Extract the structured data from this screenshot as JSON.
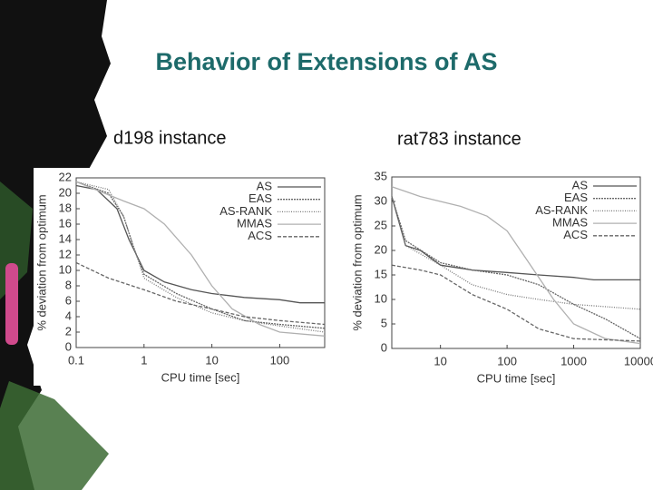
{
  "slide": {
    "title": "Behavior of Extensions of AS"
  },
  "chart_data": [
    {
      "type": "line",
      "title": "d198 instance",
      "x_label": "CPU time [sec]",
      "y_label": "% deviation from optimum",
      "xscale": "log",
      "xlim": [
        0.1,
        460
      ],
      "xticks": [
        0.1,
        1,
        10,
        100
      ],
      "ylim": [
        0,
        22
      ],
      "yticks": [
        0,
        2,
        4,
        6,
        8,
        10,
        12,
        14,
        16,
        18,
        20,
        22
      ],
      "legend": "upper right",
      "series": [
        {
          "name": "AS",
          "color": "#555555",
          "dash": "none",
          "x": [
            0.1,
            0.2,
            0.4,
            0.6,
            1,
            2,
            5,
            10,
            30,
            100,
            200,
            460
          ],
          "values": [
            21,
            20.5,
            18,
            14,
            10,
            8.5,
            7.5,
            7,
            6.5,
            6.2,
            5.8,
            5.8
          ]
        },
        {
          "name": "EAS",
          "color": "#666666",
          "dash": "2,1",
          "x": [
            0.1,
            0.3,
            0.5,
            0.7,
            1,
            3,
            10,
            30,
            100,
            460
          ],
          "values": [
            21.5,
            20,
            17,
            13,
            9.5,
            7,
            5,
            3.5,
            3,
            2.5
          ]
        },
        {
          "name": "AS-RANK",
          "color": "#777777",
          "dash": "1,1.5",
          "x": [
            0.1,
            0.3,
            0.5,
            1,
            3,
            10,
            30,
            100,
            460
          ],
          "values": [
            21.5,
            20.5,
            17,
            9,
            6.5,
            4.5,
            3.5,
            2.8,
            2
          ]
        },
        {
          "name": "MMAS",
          "color": "#b0b0b0",
          "dash": "none",
          "x": [
            0.1,
            0.5,
            1,
            2,
            5,
            10,
            20,
            50,
            100,
            460
          ],
          "values": [
            21.5,
            19,
            18,
            16,
            12,
            8,
            5,
            3,
            2,
            1.5
          ]
        },
        {
          "name": "ACS",
          "color": "#666666",
          "dash": "4,2",
          "x": [
            0.1,
            0.3,
            1,
            3,
            10,
            30,
            100,
            460
          ],
          "values": [
            11,
            9,
            7.5,
            6,
            5,
            4,
            3.5,
            3
          ]
        }
      ]
    },
    {
      "type": "line",
      "title": "rat783 instance",
      "x_label": "CPU time [sec]",
      "y_label": "% deviation from optimum",
      "xscale": "log",
      "xlim": [
        1.86,
        10000
      ],
      "xticks": [
        10,
        100,
        1000,
        10000
      ],
      "ylim": [
        0,
        35
      ],
      "yticks": [
        0,
        5,
        10,
        15,
        20,
        25,
        30,
        35
      ],
      "legend": "upper right",
      "series": [
        {
          "name": "AS",
          "color": "#555555",
          "dash": "none",
          "x": [
            1.86,
            3,
            5,
            10,
            30,
            100,
            300,
            1000,
            2000,
            10000
          ],
          "values": [
            31,
            21,
            20,
            17,
            16,
            15.5,
            15,
            14.5,
            14,
            14
          ]
        },
        {
          "name": "EAS",
          "color": "#666666",
          "dash": "2,1",
          "x": [
            1.86,
            3,
            10,
            30,
            100,
            300,
            1000,
            3000,
            10000
          ],
          "values": [
            31,
            22,
            17.5,
            16,
            15,
            13,
            9,
            6,
            2
          ]
        },
        {
          "name": "AS-RANK",
          "color": "#777777",
          "dash": "1,1.5",
          "x": [
            1.86,
            3,
            10,
            30,
            100,
            300,
            1000,
            10000
          ],
          "values": [
            31,
            21,
            17,
            13,
            11,
            10,
            9,
            8
          ]
        },
        {
          "name": "MMAS",
          "color": "#b0b0b0",
          "dash": "none",
          "x": [
            1.86,
            5,
            20,
            50,
            100,
            200,
            500,
            1000,
            3000,
            10000
          ],
          "values": [
            33,
            31,
            29,
            27,
            24,
            18,
            10,
            5,
            2,
            1
          ]
        },
        {
          "name": "ACS",
          "color": "#666666",
          "dash": "4,2",
          "x": [
            1.86,
            5,
            10,
            30,
            100,
            300,
            1000,
            10000
          ],
          "values": [
            17,
            16,
            15,
            11,
            8,
            4,
            2,
            1.5
          ]
        }
      ]
    }
  ]
}
